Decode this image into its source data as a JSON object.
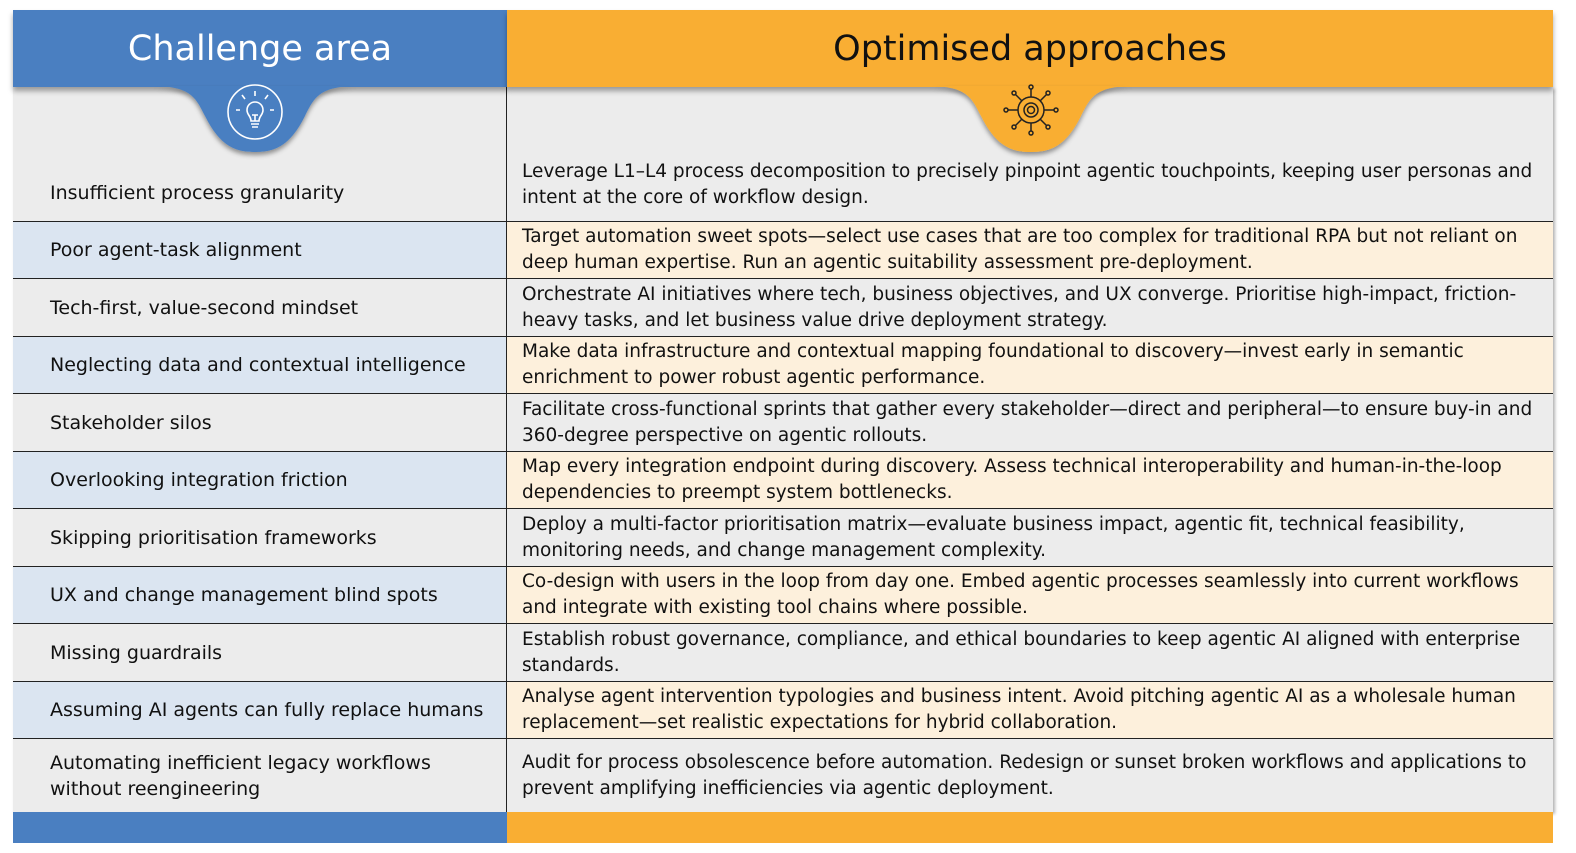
{
  "header": {
    "challenge_title": "Challenge area",
    "approach_title": "Optimised approaches"
  },
  "icons": {
    "challenge": "lightbulb-icon",
    "approach": "gear-network-icon"
  },
  "colors": {
    "blue": "#4a7fc1",
    "orange": "#f9ae33",
    "row_gray": "#ececec",
    "row_blue": "#dbe5f1",
    "row_peach": "#fdf0dc"
  },
  "rows": [
    {
      "challenge": "Insufficient process granularity",
      "approach": "Leverage L1–L4 process decomposition to precisely pinpoint agentic touchpoints, keeping user personas and intent at the core of workflow design."
    },
    {
      "challenge": "Poor agent-task alignment",
      "approach": "Target automation sweet spots—select use cases that are too complex for traditional RPA but not reliant on deep human expertise. Run an agentic suitability assessment pre-deployment."
    },
    {
      "challenge": "Tech-first, value-second mindset",
      "approach": "Orchestrate AI initiatives where tech, business objectives, and UX converge. Prioritise high-impact, friction-heavy tasks, and let business value drive deployment strategy."
    },
    {
      "challenge": "Neglecting data and contextual intelligence",
      "approach": "Make data infrastructure and contextual mapping foundational to discovery—invest early in semantic enrichment to power robust agentic performance."
    },
    {
      "challenge": "Stakeholder silos",
      "approach": "Facilitate cross-functional sprints that gather every stakeholder—direct and peripheral—to ensure buy-in and 360-degree perspective on agentic rollouts."
    },
    {
      "challenge": "Overlooking integration friction",
      "approach": "Map every integration endpoint during discovery. Assess technical interoperability and human-in-the-loop dependencies to preempt system bottlenecks."
    },
    {
      "challenge": "Skipping prioritisation frameworks",
      "approach": "Deploy a multi-factor prioritisation matrix—evaluate business impact, agentic fit, technical feasibility, monitoring needs, and change management complexity."
    },
    {
      "challenge": "UX and change management blind spots",
      "approach": "Co-design with users in the loop from day one. Embed agentic processes seamlessly into current workflows and integrate with existing tool chains where possible."
    },
    {
      "challenge": "Missing guardrails",
      "approach": "Establish robust governance, compliance, and ethical boundaries to keep agentic AI aligned with enterprise standards."
    },
    {
      "challenge": "Assuming AI agents can fully replace humans",
      "approach": "Analyse agent intervention typologies and business intent. Avoid pitching agentic AI as a wholesale human replacement—set realistic expectations for hybrid collaboration."
    },
    {
      "challenge": "Automating inefficient legacy workflows without reengineering",
      "approach": "Audit for process obsolescence before automation. Redesign or sunset broken workflows and applications to prevent amplifying inefficiencies via agentic deployment."
    }
  ]
}
